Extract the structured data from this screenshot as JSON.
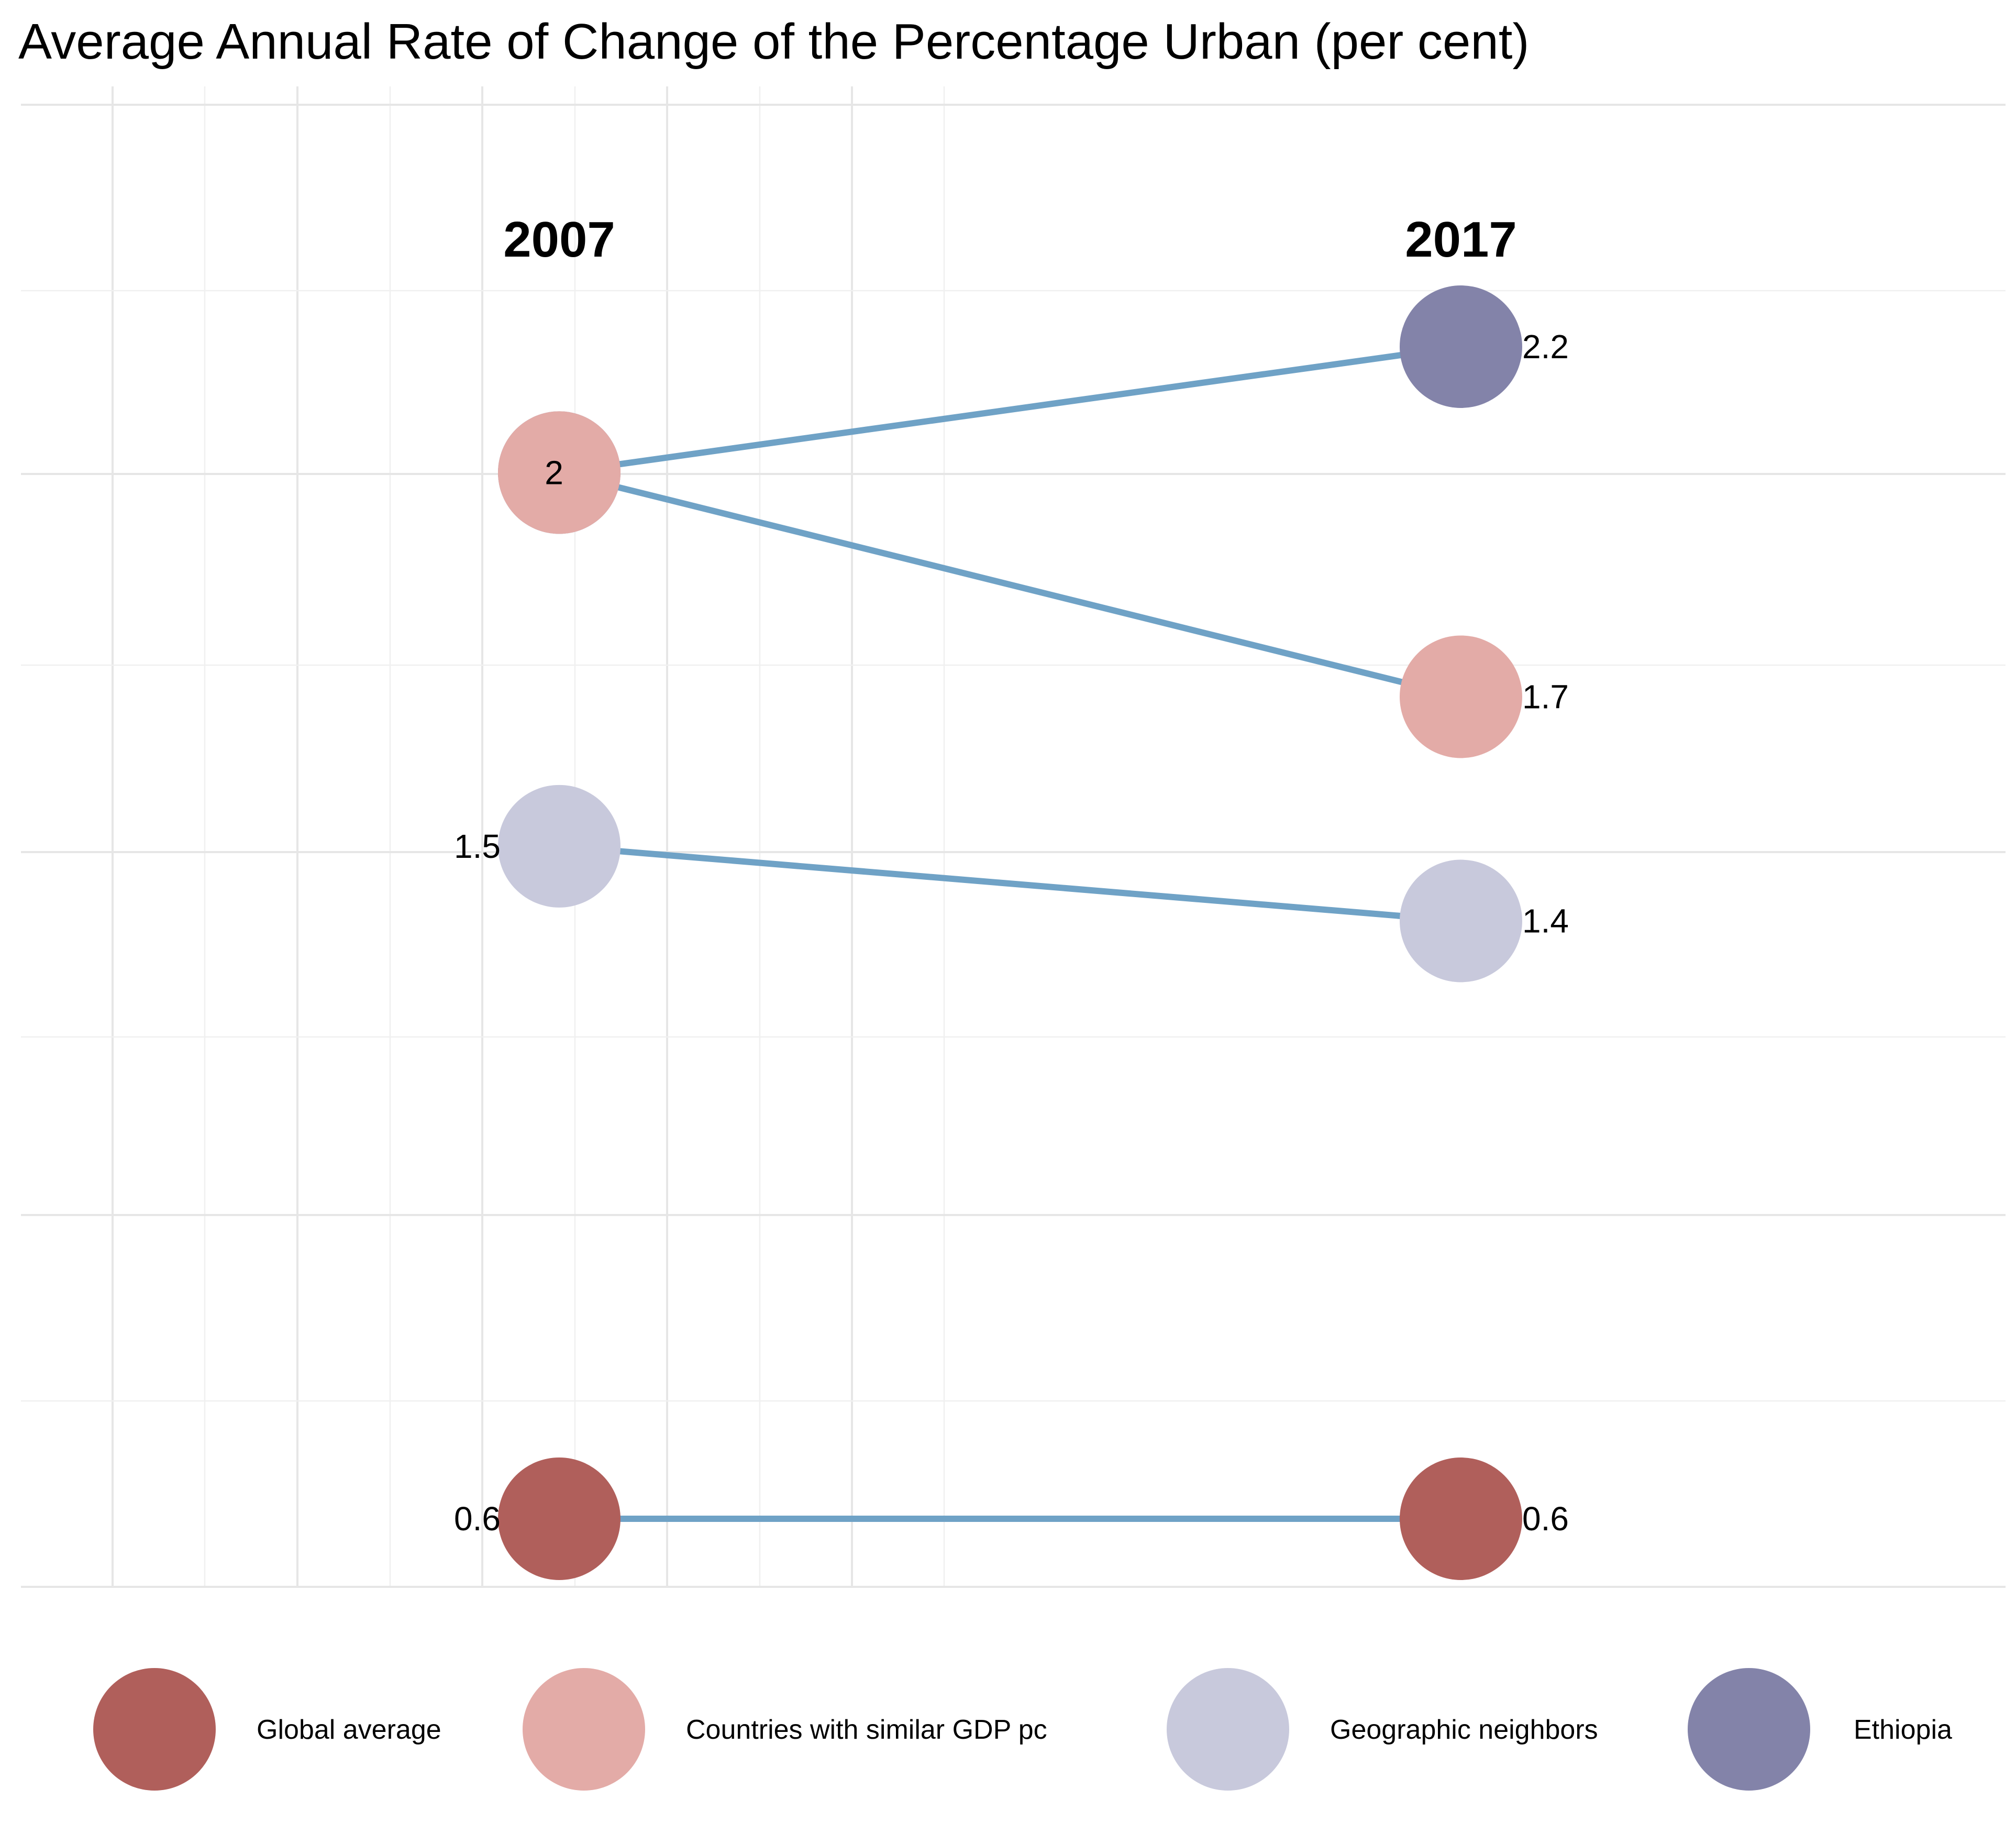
{
  "chart_data": {
    "type": "line",
    "title": "Average Annual Rate of Change of the Percentage Urban (per cent)",
    "x": [
      "2007",
      "2017"
    ],
    "year_labels": [
      "2007",
      "2017"
    ],
    "ylim": [
      0.6,
      2.2
    ],
    "grid": true,
    "legend_position": "bottom",
    "series": [
      {
        "name": "Global average",
        "values": [
          0.6,
          0.6
        ],
        "labels": [
          "0.6",
          "0.6"
        ],
        "color": "#b05f5b"
      },
      {
        "name": "Countries with similar GDP pc",
        "values": [
          2.0,
          1.7
        ],
        "labels": [
          "2",
          "1.7"
        ],
        "color": "#e3aba7"
      },
      {
        "name": "Geographic neighbors",
        "values": [
          1.5,
          1.4
        ],
        "labels": [
          "1.5",
          "1.4"
        ],
        "color": "#c8c9dc"
      },
      {
        "name": "Ethiopia",
        "values": [
          2.0,
          2.2
        ],
        "labels": [
          "2",
          "2.2"
        ],
        "color": "#8383a9"
      }
    ]
  }
}
